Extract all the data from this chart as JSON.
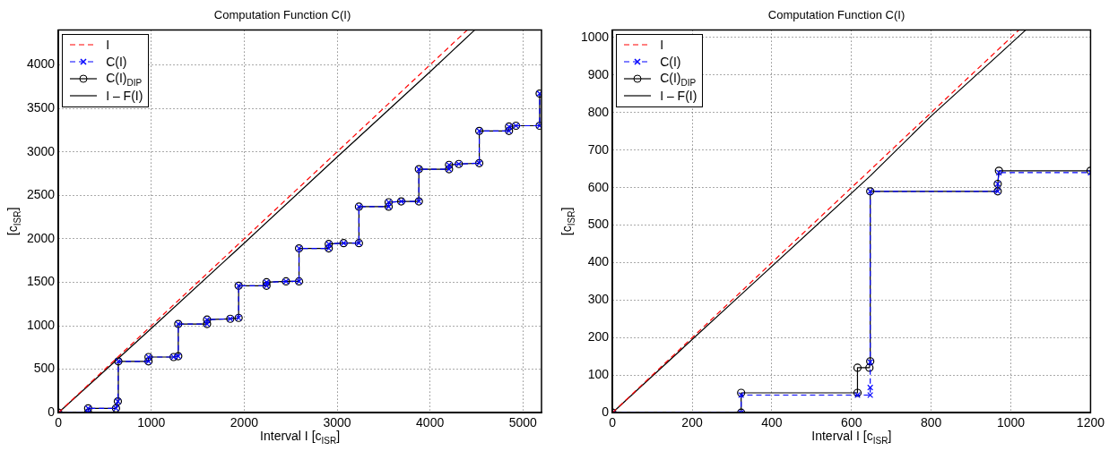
{
  "chart_data": [
    {
      "type": "line",
      "title": "Computation Function C(I)",
      "xlabel": "Interval I [c$_{ISR}$]",
      "ylabel": "[c$_{ISR}$]",
      "xlim": [
        0,
        5200
      ],
      "xticks": [
        0,
        1000,
        2000,
        3000,
        4000,
        5000
      ],
      "ylim": [
        0,
        4400
      ],
      "yticks": [
        0,
        500,
        1000,
        1500,
        2000,
        2500,
        3000,
        3500,
        4000
      ],
      "grid": true,
      "legend": "top left",
      "series": [
        {
          "name": "I",
          "color": "#ff0000",
          "line_style": "dashed",
          "marker": "none",
          "x": [
            0,
            4400
          ],
          "values": [
            0,
            4400
          ]
        },
        {
          "name": "C(I)",
          "color": "#0000ff",
          "line_style": "dashed",
          "marker": "cross",
          "x": [
            0,
            320,
            320,
            620,
            640,
            645,
            970,
            970,
            1240,
            1290,
            1290,
            1600,
            1600,
            1850,
            1940,
            1940,
            2240,
            2240,
            2450,
            2590,
            2590,
            2910,
            2910,
            3070,
            3235,
            3235,
            3555,
            3555,
            3690,
            3880,
            3880,
            4205,
            4205,
            4310,
            4530,
            4530,
            4850,
            4850,
            4925,
            5180,
            5180
          ],
          "values": [
            0,
            0,
            50,
            50,
            130,
            590,
            590,
            640,
            640,
            650,
            1020,
            1020,
            1070,
            1080,
            1090,
            1460,
            1460,
            1500,
            1510,
            1510,
            1890,
            1890,
            1940,
            1950,
            1950,
            2370,
            2370,
            2420,
            2430,
            2430,
            2800,
            2800,
            2850,
            2860,
            2870,
            3240,
            3240,
            3290,
            3300,
            3300,
            3670
          ]
        },
        {
          "name": "C(I)$_{DIP}$",
          "color": "#000000",
          "line_style": "solid",
          "marker": "circle",
          "x": [
            0,
            320,
            320,
            620,
            640,
            645,
            970,
            970,
            1240,
            1290,
            1290,
            1600,
            1600,
            1850,
            1940,
            1940,
            2240,
            2240,
            2450,
            2590,
            2590,
            2910,
            2910,
            3070,
            3235,
            3235,
            3555,
            3555,
            3690,
            3880,
            3880,
            4205,
            4205,
            4310,
            4530,
            4530,
            4850,
            4850,
            4925,
            5180,
            5180
          ],
          "values": [
            0,
            0,
            50,
            50,
            130,
            590,
            590,
            640,
            640,
            650,
            1020,
            1020,
            1070,
            1080,
            1090,
            1460,
            1460,
            1500,
            1510,
            1510,
            1890,
            1890,
            1940,
            1950,
            1950,
            2370,
            2370,
            2420,
            2430,
            2430,
            2800,
            2800,
            2850,
            2860,
            2870,
            3240,
            3240,
            3290,
            3300,
            3300,
            3670
          ]
        },
        {
          "name": "I – F(I)",
          "color": "#000000",
          "line_style": "solid",
          "marker": "none",
          "x": [
            0,
            640,
            1000,
            2000,
            3000,
            4000,
            4480
          ],
          "values": [
            0,
            620,
            970,
            1950,
            2940,
            3920,
            4400
          ]
        }
      ]
    },
    {
      "type": "line",
      "title": "Computation Function C(I)",
      "xlabel": "Interval I [c$_{ISR}$]",
      "ylabel": "[c$_{ISR}$]",
      "xlim": [
        0,
        1200
      ],
      "xticks": [
        0,
        200,
        400,
        600,
        800,
        1000,
        1200
      ],
      "ylim": [
        0,
        1020
      ],
      "yticks": [
        0,
        100,
        200,
        300,
        400,
        500,
        600,
        700,
        800,
        900,
        1000
      ],
      "grid": true,
      "legend": "top left",
      "series": [
        {
          "name": "I",
          "color": "#ff0000",
          "line_style": "dashed",
          "marker": "none",
          "x": [
            0,
            1020
          ],
          "values": [
            0,
            1020
          ]
        },
        {
          "name": "C(I)",
          "color": "#0000ff",
          "line_style": "dashed",
          "marker": "cross",
          "x": [
            0,
            323,
            323,
            615,
            647,
            647,
            647,
            647,
            967,
            967,
            970,
            1200
          ],
          "values": [
            0,
            0,
            47,
            47,
            47,
            67,
            135,
            590,
            590,
            610,
            640,
            640
          ]
        },
        {
          "name": "C(I)$_{DIP}$",
          "color": "#000000",
          "line_style": "solid",
          "marker": "circle",
          "x": [
            0,
            323,
            323,
            615,
            615,
            645,
            647,
            647,
            967,
            967,
            970,
            1200
          ],
          "values": [
            0,
            0,
            53,
            53,
            120,
            120,
            137,
            590,
            590,
            610,
            645,
            645
          ]
        },
        {
          "name": "I – F(I)",
          "color": "#000000",
          "line_style": "solid",
          "marker": "none",
          "x": [
            0,
            320,
            647,
            800,
            967,
            1037
          ],
          "values": [
            0,
            312,
            631,
            791,
            952,
            1020
          ]
        }
      ]
    }
  ]
}
